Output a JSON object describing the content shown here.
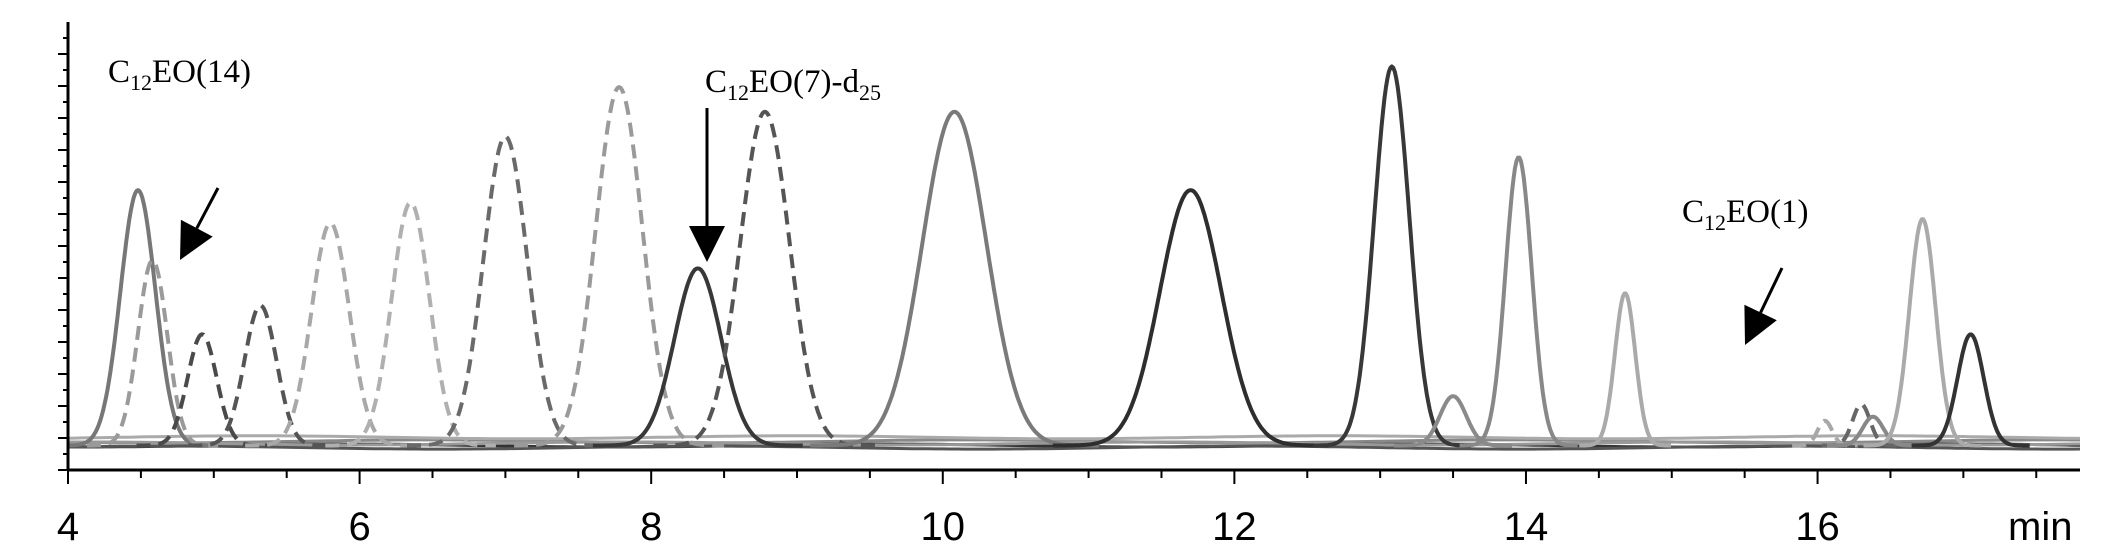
{
  "chart_data": {
    "type": "line",
    "title": "",
    "xlabel": "min",
    "ylabel": "",
    "xlim": [
      4,
      17.8
    ],
    "ylim": [
      0,
      1
    ],
    "x_ticks": [
      4,
      6,
      8,
      10,
      12,
      14,
      16
    ],
    "x_tick_labels": [
      "4",
      "6",
      "8",
      "10",
      "12",
      "14",
      "16"
    ],
    "grid": false,
    "legend": "none",
    "annotations": [
      {
        "main": "C",
        "sub": "12",
        "rest": "EO(14)",
        "sub2": "",
        "arrow_x": 4.65
      },
      {
        "main": "C",
        "sub": "12",
        "rest": "EO(7)-d",
        "sub2": "25",
        "arrow_x": 8.32
      },
      {
        "main": "C",
        "sub": "12",
        "rest": "EO(1)",
        "sub2": "",
        "arrow_x": 15.55
      }
    ],
    "peaks": [
      {
        "x": 4.48,
        "height": 0.62,
        "width": 0.12,
        "style": "solid",
        "color": "#777777"
      },
      {
        "x": 4.58,
        "height": 0.45,
        "width": 0.1,
        "style": "dashed",
        "color": "#9a9a9a"
      },
      {
        "x": 4.92,
        "height": 0.27,
        "width": 0.1,
        "style": "dashed",
        "color": "#4a4a4a"
      },
      {
        "x": 5.32,
        "height": 0.34,
        "width": 0.11,
        "style": "dashed",
        "color": "#555555"
      },
      {
        "x": 5.8,
        "height": 0.54,
        "width": 0.13,
        "style": "dashed",
        "color": "#a8a8a8"
      },
      {
        "x": 6.35,
        "height": 0.59,
        "width": 0.13,
        "style": "dashed",
        "color": "#b0b0b0"
      },
      {
        "x": 7.0,
        "height": 0.75,
        "width": 0.15,
        "style": "dashed",
        "color": "#6a6a6a"
      },
      {
        "x": 7.78,
        "height": 0.87,
        "width": 0.16,
        "style": "dashed",
        "color": "#9a9a9a"
      },
      {
        "x": 8.32,
        "height": 0.43,
        "width": 0.16,
        "style": "solid",
        "color": "#383838"
      },
      {
        "x": 8.78,
        "height": 0.81,
        "width": 0.17,
        "style": "dashed",
        "color": "#555555"
      },
      {
        "x": 10.08,
        "height": 0.81,
        "width": 0.22,
        "style": "solid",
        "color": "#7a7a7a"
      },
      {
        "x": 11.7,
        "height": 0.62,
        "width": 0.21,
        "style": "solid",
        "color": "#2e2e2e"
      },
      {
        "x": 13.08,
        "height": 0.92,
        "width": 0.12,
        "style": "solid",
        "color": "#383838"
      },
      {
        "x": 13.5,
        "height": 0.12,
        "width": 0.09,
        "style": "solid",
        "color": "#8a8a8a"
      },
      {
        "x": 13.95,
        "height": 0.7,
        "width": 0.09,
        "style": "solid",
        "color": "#888888"
      },
      {
        "x": 14.68,
        "height": 0.37,
        "width": 0.07,
        "style": "solid",
        "color": "#aaaaaa"
      },
      {
        "x": 16.05,
        "height": 0.06,
        "width": 0.05,
        "style": "dashed",
        "color": "#a8a8a8"
      },
      {
        "x": 16.3,
        "height": 0.1,
        "width": 0.06,
        "style": "dashed",
        "color": "#666666"
      },
      {
        "x": 16.38,
        "height": 0.07,
        "width": 0.07,
        "style": "solid",
        "color": "#888888"
      },
      {
        "x": 16.72,
        "height": 0.55,
        "width": 0.09,
        "style": "solid",
        "color": "#aaaaaa"
      },
      {
        "x": 17.05,
        "height": 0.27,
        "width": 0.09,
        "style": "solid",
        "color": "#333333"
      }
    ],
    "baselines": [
      {
        "color": "#888888",
        "y": 0.05
      },
      {
        "color": "#333333",
        "y": 0.04
      },
      {
        "color": "#aaaaaa",
        "y": 0.06
      },
      {
        "color": "#555555",
        "y": 0.035
      },
      {
        "color": "#999999",
        "y": 0.045
      }
    ]
  }
}
